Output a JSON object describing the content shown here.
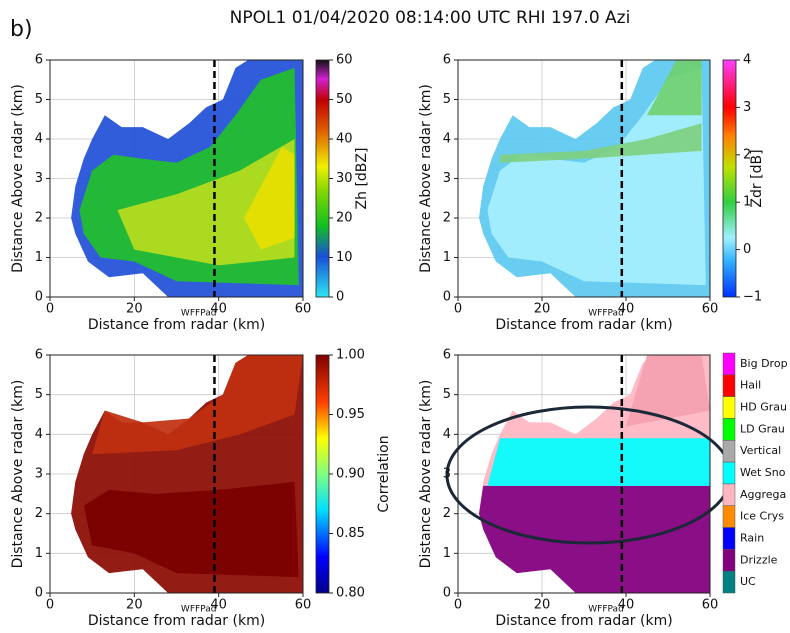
{
  "figure_label": "b)",
  "title": "NPOL1 01/04/2020 08:14:00 UTC RHI 197.0 Azi",
  "chart_data": [
    {
      "type": "rhi",
      "xlabel": "Distance from radar (km)",
      "ylabel": "Distance Above radar (km)",
      "xlim": [
        0,
        60
      ],
      "ylim": [
        0,
        6
      ],
      "xticks": [
        0,
        20,
        40,
        60
      ],
      "yticks": [
        0,
        1,
        2,
        3,
        4,
        5,
        6
      ],
      "grid": true,
      "annotation": {
        "text": "WFFPad",
        "x": 39
      },
      "colorbar": {
        "label": "Zh [dBZ]",
        "lim": [
          0,
          60
        ],
        "ticks": [
          0,
          10,
          20,
          30,
          40,
          50,
          60
        ]
      }
    },
    {
      "type": "rhi",
      "xlabel": "Distance from radar (km)",
      "ylabel": "Distance Above radar (km)",
      "xlim": [
        0,
        60
      ],
      "ylim": [
        0,
        6
      ],
      "xticks": [
        0,
        20,
        40,
        60
      ],
      "yticks": [
        0,
        1,
        2,
        3,
        4,
        5,
        6
      ],
      "grid": true,
      "annotation": {
        "text": "WFFPad",
        "x": 39
      },
      "colorbar": {
        "label": "Zdr [dB]",
        "lim": [
          -1,
          4
        ],
        "ticks": [
          {
            "value": -1,
            "label": "−1"
          },
          0,
          1,
          2,
          3,
          4
        ]
      }
    },
    {
      "type": "rhi",
      "xlabel": "Distance from radar (km)",
      "ylabel": "Distance Above radar (km)",
      "xlim": [
        0,
        60
      ],
      "ylim": [
        0,
        6
      ],
      "xticks": [
        0,
        20,
        40,
        60
      ],
      "yticks": [
        0,
        1,
        2,
        3,
        4,
        5,
        6
      ],
      "grid": true,
      "annotation": {
        "text": "WFFPad",
        "x": 39
      },
      "colorbar": {
        "label": "Correlation",
        "lim": [
          0.8,
          1.0
        ],
        "ticks": [
          {
            "value": 0.8,
            "label": "0.80"
          },
          {
            "value": 0.85,
            "label": "0.85"
          },
          {
            "value": 0.9,
            "label": "0.90"
          },
          {
            "value": 0.95,
            "label": "0.95"
          },
          {
            "value": 1.0,
            "label": "1.00"
          }
        ]
      }
    },
    {
      "type": "rhi",
      "xlabel": "Distance from radar (km)",
      "ylabel": "Distance Above radar (km)",
      "xlim": [
        0,
        60
      ],
      "ylim": [
        0,
        6
      ],
      "xticks": [
        0,
        20,
        40,
        60
      ],
      "yticks": [
        0,
        1,
        2,
        3,
        4,
        5,
        6
      ],
      "grid": true,
      "annotation": {
        "text": "WFFPad",
        "x": 39
      },
      "classes": [
        {
          "name": "Big Drop",
          "color": "#ff00ff"
        },
        {
          "name": "Hail",
          "color": "#ff0000"
        },
        {
          "name": "HD Grau",
          "color": "#ffff00"
        },
        {
          "name": "LD Grau",
          "color": "#00ff00"
        },
        {
          "name": "Vertical",
          "color": "#a9a9a9"
        },
        {
          "name": "Wet Sno",
          "color": "#00ffff"
        },
        {
          "name": "Aggrega",
          "color": "#ffb6c1"
        },
        {
          "name": "Ice Crys",
          "color": "#ff8c00"
        },
        {
          "name": "Rain",
          "color": "#0000ff"
        },
        {
          "name": "Drizzle",
          "color": "#800080"
        },
        {
          "name": "UC",
          "color": "#008080"
        }
      ]
    }
  ]
}
